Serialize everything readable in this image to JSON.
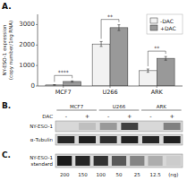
{
  "chart_data": [
    {
      "type": "bar",
      "title": "A.",
      "categories": [
        "MCF7",
        "U266",
        "ARK"
      ],
      "y_label": "NY-ESO-1 expression\n(copy number/1ng RNA)",
      "series": [
        {
          "name": "-DAC",
          "color": "#f2f2f2",
          "values": [
            50,
            2050,
            750
          ],
          "errors": [
            15,
            120,
            80
          ]
        },
        {
          "name": "+DAC",
          "color": "#999999",
          "values": [
            220,
            2850,
            1350
          ],
          "errors": [
            30,
            140,
            90
          ]
        }
      ],
      "ylim": [
        0,
        3500
      ],
      "yticks": [
        0,
        1000,
        2000,
        3000
      ],
      "grid": false,
      "legend": "upper-right",
      "annotations": [
        "****",
        "**",
        "**"
      ]
    },
    {
      "type": "blot",
      "title": "B.",
      "categories": [
        "MCF7",
        "U266",
        "ARK"
      ],
      "lane_label": "DAC",
      "lanes": [
        "-",
        "+",
        "-",
        "+",
        "-",
        "+"
      ],
      "rows": [
        {
          "name": "NY-ESO-1",
          "values": [
            null,
            0.75,
            0.6,
            0.25,
            null,
            0.5
          ]
        },
        {
          "name": "α-Tubulin",
          "values": [
            0.15,
            0.12,
            0.18,
            0.13,
            0.15,
            0.12
          ]
        }
      ]
    },
    {
      "type": "blot",
      "title": "C.",
      "lanes": [
        "200",
        "150",
        "100",
        "50",
        "25",
        "12.5",
        "(ng)"
      ],
      "rows": [
        {
          "name": "NY-ESO-1\nstandard",
          "values": [
            0.1,
            0.15,
            0.2,
            0.35,
            0.52,
            0.68,
            0.8
          ]
        }
      ]
    }
  ]
}
